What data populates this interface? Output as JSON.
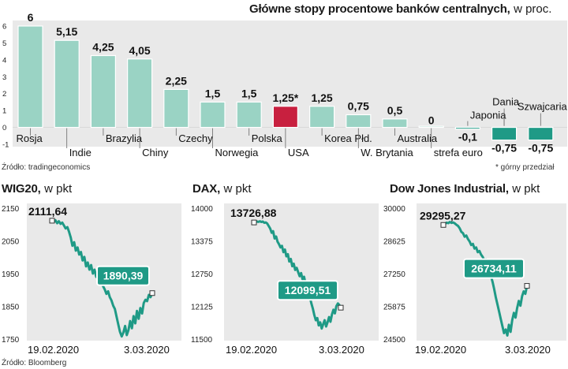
{
  "top_chart": {
    "title": "Główne stopy procentowe banków centralnych,",
    "unit": "w proc.",
    "source": "Źródło: tradingeconomics",
    "footnote": "* górny przedział",
    "colors": {
      "bar": "#9ad3c4",
      "bar_stroke": "#ffffff",
      "highlight": "#c8203f",
      "negative": "#1f9a86",
      "panel": "#e9e9e9"
    }
  },
  "bottom_source": "Źródło: Bloomberg",
  "chart_data": [
    {
      "type": "bar",
      "title": "Główne stopy procentowe banków centralnych, w proc.",
      "categories": [
        "Rosja",
        "Indie",
        "Brazylia",
        "Chiny",
        "Czechy",
        "Norwegia",
        "Polska",
        "USA",
        "Korea Płd.",
        "W. Brytania",
        "Australia",
        "strefa euro",
        "Japonia",
        "Dania",
        "Szwajcaria"
      ],
      "values": [
        6,
        5.15,
        4.25,
        4.05,
        2.25,
        1.5,
        1.5,
        1.25,
        1.25,
        0.75,
        0.5,
        0,
        -0.1,
        -0.75,
        -0.75
      ],
      "value_labels": [
        "6",
        "5,15",
        "4,25",
        "4,05",
        "2,25",
        "1,5",
        "1,5",
        "1,25*",
        "1,25",
        "0,75",
        "0,5",
        "0",
        "-0,1",
        "-0,75",
        "-0,75"
      ],
      "highlight": "USA",
      "ylim": [
        -1,
        6
      ],
      "yticks": [
        "6",
        "5",
        "4",
        "3",
        "2",
        "1",
        "0",
        "-1"
      ],
      "grid": false
    },
    {
      "type": "line",
      "title": "WIG20,",
      "unit": "w pkt",
      "ylim": [
        1750,
        2150
      ],
      "yticks": [
        "2150",
        "2050",
        "1950",
        "1850",
        "1750"
      ],
      "x_labels": [
        "19.02.2020",
        "3.03.2020"
      ],
      "start_label": "2111,64",
      "end_label": "1890,39",
      "values": [
        2111.64,
        2108,
        2113,
        2104,
        2110,
        2102,
        2106,
        2097,
        2088,
        2092,
        2078,
        2060,
        2035,
        2046,
        2020,
        2030,
        2008,
        2016,
        1990,
        2001,
        1972,
        1984,
        1962,
        1976,
        1950,
        1962,
        1940,
        1948,
        1925,
        1934,
        1912,
        1902,
        1888,
        1896,
        1878,
        1868,
        1852,
        1842,
        1818,
        1795,
        1772,
        1758,
        1770,
        1790,
        1762,
        1778,
        1805,
        1783,
        1820,
        1798,
        1836,
        1812,
        1845,
        1828,
        1860,
        1870,
        1866,
        1885,
        1878,
        1890.39
      ]
    },
    {
      "type": "line",
      "title": "DAX,",
      "unit": "w pkt",
      "ylim": [
        11500,
        14000
      ],
      "yticks": [
        "14000",
        "13375",
        "12750",
        "12125",
        "11500"
      ],
      "x_labels": [
        "19.02.2020",
        "3.03.2020"
      ],
      "start_label": "13726,88",
      "end_label": "12099,51",
      "values": [
        13726.88,
        13730,
        13745,
        13738,
        13750,
        13736,
        13744,
        13720,
        13728,
        13705,
        13660,
        13610,
        13530,
        13560,
        13420,
        13460,
        13360,
        13310,
        13250,
        13280,
        13160,
        13210,
        13080,
        13120,
        12980,
        13030,
        12890,
        12940,
        12820,
        12860,
        12780,
        12700,
        12760,
        12640,
        12690,
        12560,
        12480,
        12400,
        12300,
        12180,
        12080,
        11960,
        11860,
        11900,
        11760,
        11820,
        11700,
        11780,
        11860,
        11740,
        11820,
        11920,
        11830,
        11970,
        12060,
        11990,
        12130,
        12180,
        12150,
        12099.51
      ]
    },
    {
      "type": "line",
      "title": "Dow Jones Industrial,",
      "unit": "w pkt",
      "ylim": [
        24500,
        30000
      ],
      "yticks": [
        "30000",
        "28625",
        "27250",
        "25875",
        "24500"
      ],
      "x_labels": [
        "19.02.2020",
        "3.03.2020"
      ],
      "start_label": "29295,27",
      "end_label": "26734,11",
      "values": [
        29295.27,
        29340,
        29390,
        29370,
        29420,
        29380,
        29400,
        29360,
        29300,
        29250,
        29150,
        29000,
        28950,
        28800,
        28850,
        28700,
        28600,
        28450,
        28500,
        28300,
        28350,
        28150,
        28200,
        28050,
        27950,
        27800,
        27850,
        27650,
        27400,
        27150,
        26900,
        26600,
        26250,
        25950,
        25650,
        25350,
        25050,
        24750,
        24900,
        24650,
        25100,
        24800,
        25300,
        25600,
        25400,
        25800,
        26100,
        25900,
        26300,
        26500,
        26400,
        26734.11
      ]
    }
  ]
}
